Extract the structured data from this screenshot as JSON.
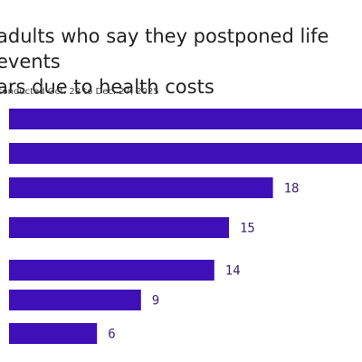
{
  "header": {
    "title": "adults who say they postponed life events\nars due to health costs",
    "subtitle": "conducted Oct. 22 to Dec. 27, 2025"
  },
  "chart_data": {
    "type": "bar",
    "orientation": "horizontal",
    "title": "adults who say they postponed life events ars due to health costs",
    "subtitle": "conducted Oct. 22 to Dec. 27, 2025",
    "categories": [
      "",
      "",
      "",
      "",
      "",
      "",
      ""
    ],
    "values": [
      null,
      null,
      18,
      15,
      14,
      9,
      6
    ],
    "value_labels": [
      "",
      "",
      "18",
      "15",
      "14",
      "9",
      "6"
    ],
    "bar_color": "#3f10b8",
    "label_color": "#3a1f7a",
    "xlim": [
      0,
      24
    ],
    "grid": false,
    "legend": "none"
  }
}
